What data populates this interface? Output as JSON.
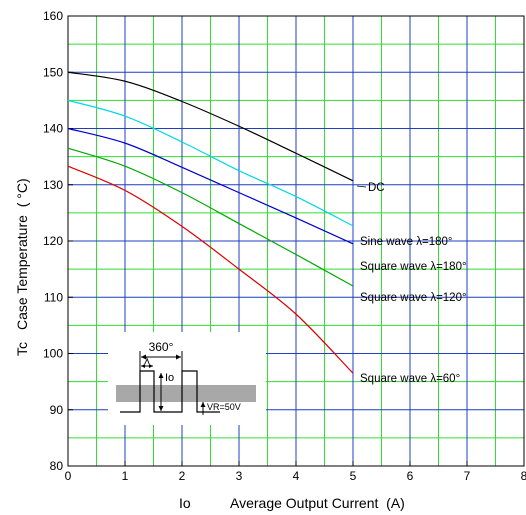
{
  "chart_data": {
    "type": "line",
    "xlabel_symbol": "Io",
    "xlabel": "Average Output Current  (A)",
    "ylabel_symbol": "Tc",
    "ylabel": "Case Temperature  ( °C)",
    "xlim": [
      0,
      8
    ],
    "ylim": [
      80,
      160
    ],
    "x_ticks": [
      "0",
      "1",
      "2",
      "3",
      "4",
      "5",
      "6",
      "7",
      "8"
    ],
    "y_ticks": [
      "80",
      "90",
      "100",
      "110",
      "120",
      "130",
      "140",
      "150",
      "160"
    ],
    "grid": true,
    "colors": {
      "grid_major": "#1f3fbf",
      "grid_minor": "#33dd33",
      "frame": "#000000"
    },
    "series": [
      {
        "name": "DC",
        "color": "#000000",
        "x": [
          0,
          1,
          2,
          3,
          4,
          5
        ],
        "y": [
          150,
          148.4,
          144.8,
          140.4,
          135.6,
          130.7
        ]
      },
      {
        "name": "Sine wave  λ=180°",
        "color": "#00d8e8",
        "x": [
          0,
          1,
          2,
          3,
          4,
          5
        ],
        "y": [
          145,
          142.2,
          137.6,
          132.5,
          127.9,
          122.7
        ]
      },
      {
        "name": "Square wave  λ=180°",
        "color": "#0000cc",
        "x": [
          0,
          1,
          2,
          3,
          4,
          5
        ],
        "y": [
          140,
          137.4,
          133.1,
          128.6,
          124.1,
          119.5
        ]
      },
      {
        "name": "Square wave  λ=120°",
        "color": "#00aa00",
        "x": [
          0,
          1,
          2,
          3,
          4,
          5
        ],
        "y": [
          136.5,
          133.3,
          128.6,
          123.1,
          117.6,
          112
        ]
      },
      {
        "name": "Square wave  λ=60°",
        "color": "#dd0000",
        "x": [
          0,
          1,
          2,
          3,
          4,
          5
        ],
        "y": [
          133.3,
          129,
          122.6,
          115,
          107,
          96.5
        ]
      }
    ],
    "inset": {
      "period_label": "360°",
      "width_label": "λ",
      "current_label": "Io",
      "voltage_label": "VR=50V"
    }
  }
}
